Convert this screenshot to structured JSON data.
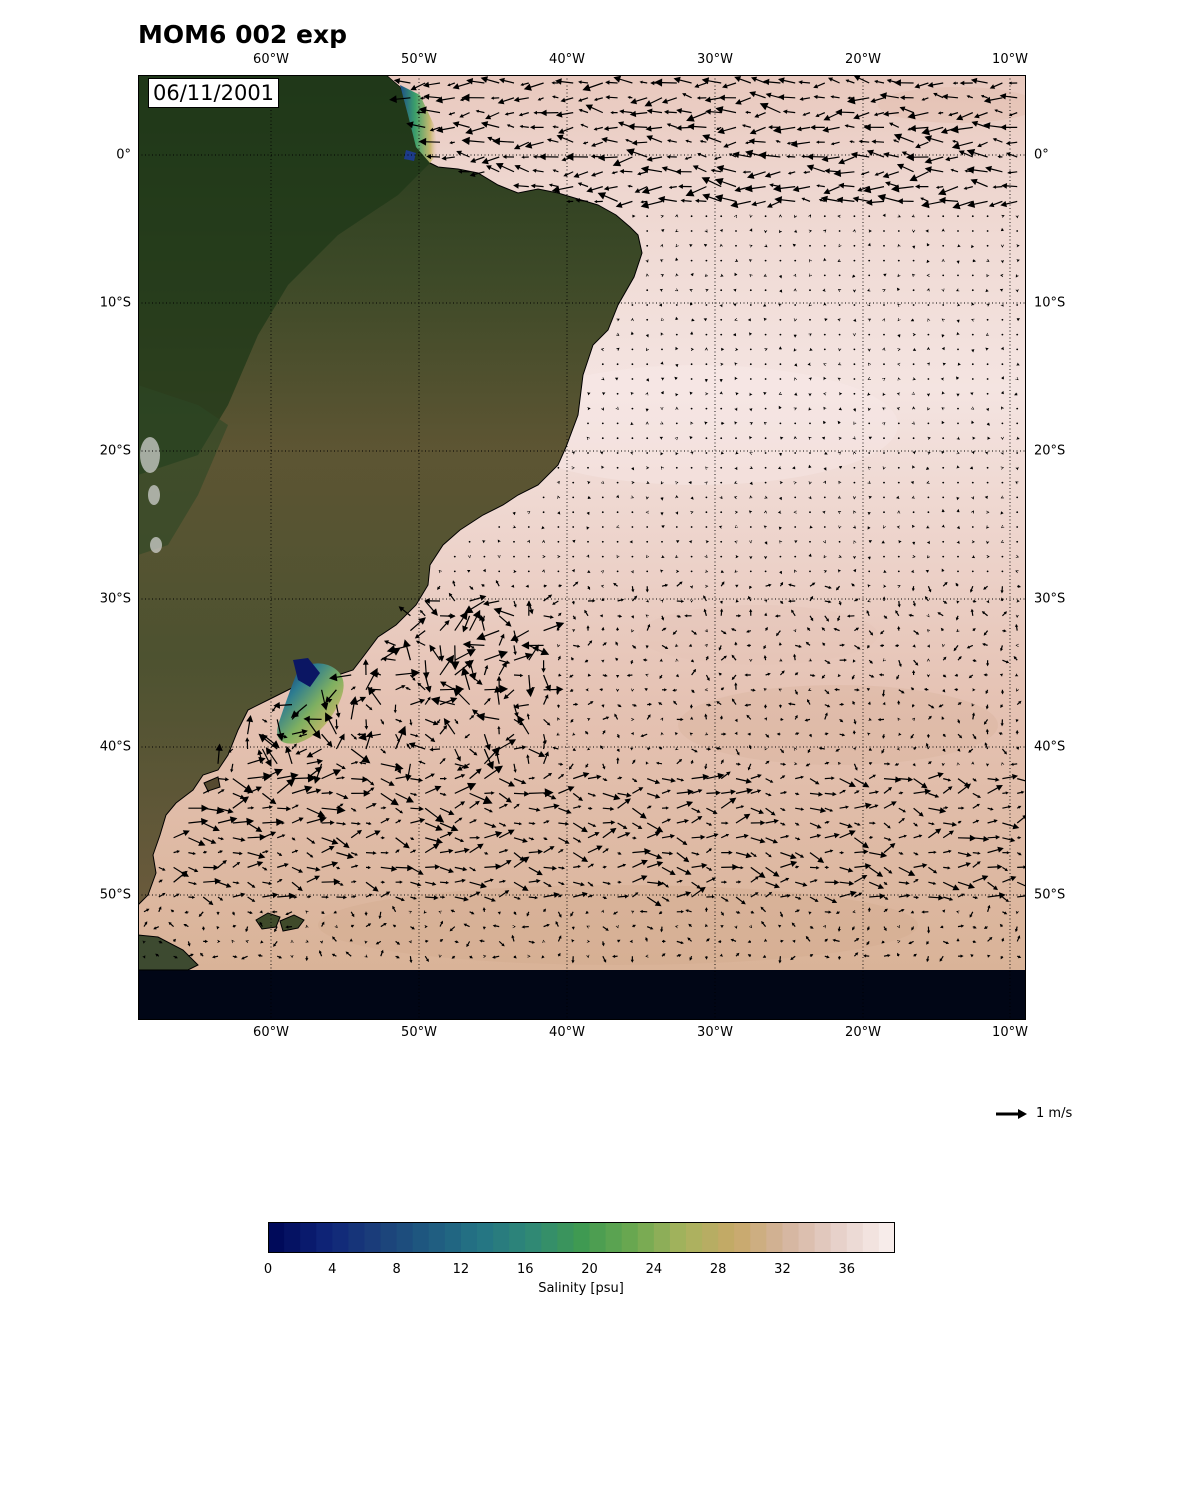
{
  "title": "MOM6 002 exp",
  "date_label": "06/11/2001",
  "map": {
    "lon_range": [
      -69,
      -9
    ],
    "lat_range": [
      -58,
      5.4
    ],
    "lon_ticks": [
      {
        "lon": -60,
        "label": "60°W"
      },
      {
        "lon": -50,
        "label": "50°W"
      },
      {
        "lon": -40,
        "label": "40°W"
      },
      {
        "lon": -30,
        "label": "30°W"
      },
      {
        "lon": -20,
        "label": "20°W"
      },
      {
        "lon": -10,
        "label": "10°W"
      }
    ],
    "lat_ticks": [
      {
        "lat": 0,
        "label": "0°"
      },
      {
        "lat": -10,
        "label": "10°S"
      },
      {
        "lat": -20,
        "label": "20°S"
      },
      {
        "lat": -30,
        "label": "30°S"
      },
      {
        "lat": -40,
        "label": "40°S"
      },
      {
        "lat": -50,
        "label": "50°S"
      }
    ],
    "gridlines": "dotted",
    "land_background": "satellite imagery",
    "ocean_field": "sea surface salinity",
    "overlay": "surface current vectors",
    "colors": {
      "land_forest": "#263e1f",
      "land_dry": "#5c5532",
      "ocean_fresh": "#0b1663",
      "ocean_salty": "#f4e4e1",
      "masked_south": "#010616"
    }
  },
  "quiver_key": {
    "value": 1,
    "label": "1 m/s"
  },
  "colorbar": {
    "label": "Salinity [psu]",
    "vmin": 0,
    "vmax": 39,
    "ticks": [
      "0",
      "4",
      "8",
      "12",
      "16",
      "20",
      "24",
      "28",
      "32",
      "36"
    ],
    "colormap": [
      "#000a5a",
      "#0f2478",
      "#1b3f7a",
      "#1f5a80",
      "#247484",
      "#2f8876",
      "#3f9a52",
      "#6aa850",
      "#a6b35d",
      "#c7a868",
      "#d4b49d",
      "#e6cfc8",
      "#f7ecea"
    ]
  }
}
